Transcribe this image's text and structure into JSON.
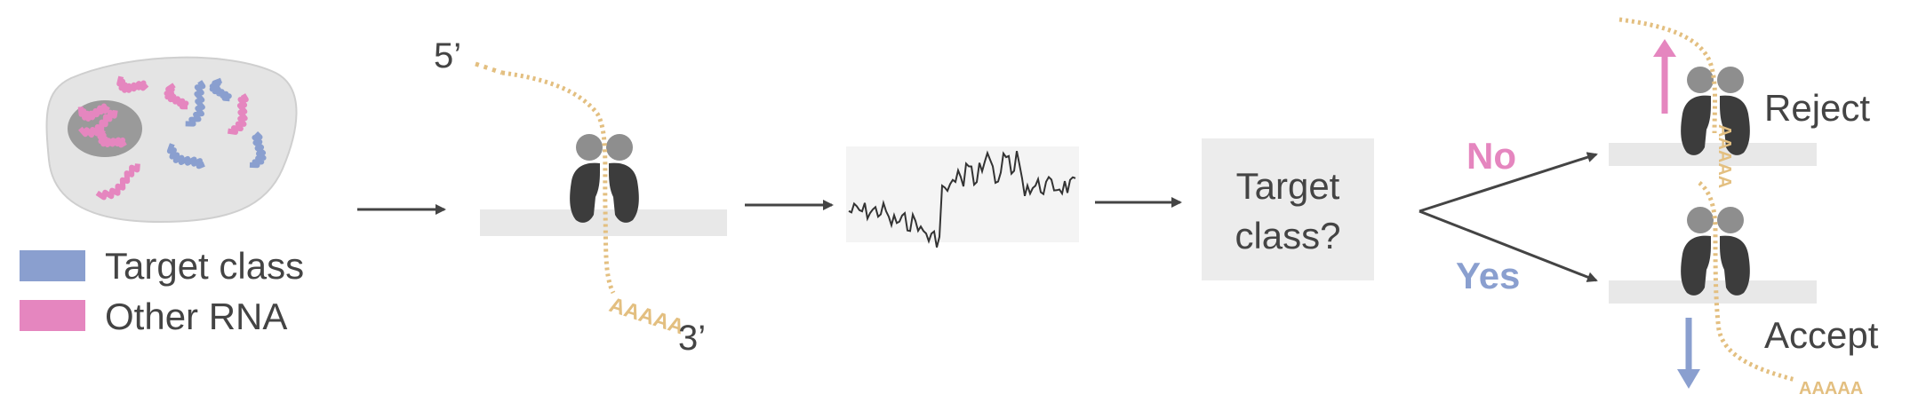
{
  "legend": {
    "items": [
      {
        "label": "Target class",
        "color": "#8a9fcf"
      },
      {
        "label": "Other RNA",
        "color": "#e586bf"
      }
    ]
  },
  "strand": {
    "five_prime": "5’",
    "three_prime": "3’",
    "poly_a": "AAAAA"
  },
  "decision": {
    "question": [
      "Target",
      "class?"
    ],
    "no": "No",
    "yes": "Yes",
    "reject": "Reject",
    "accept": "Accept"
  },
  "colors": {
    "target": "#8a9fcf",
    "other": "#e586bf",
    "strand": "#e3bf80",
    "no": "#e586bf",
    "yes": "#8a9fcf",
    "pore_dark": "#3c3c3c",
    "pore_light": "#8e8e8e",
    "membrane": "#e8e8e8",
    "cell": "#e4e4e4",
    "nucleus": "#9a9a9a",
    "arrow": "#444444"
  }
}
